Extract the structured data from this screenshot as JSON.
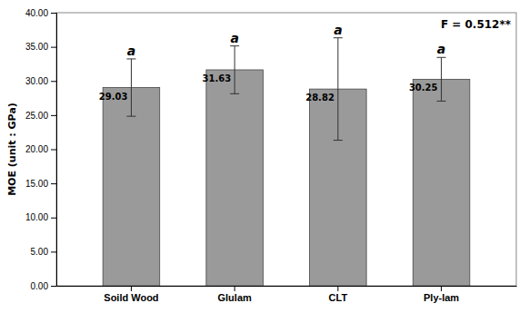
{
  "chart_data": {
    "type": "bar",
    "categories": [
      "Soild Wood",
      "Glulam",
      "CLT",
      "Ply-lam"
    ],
    "values": [
      29.03,
      31.63,
      28.82,
      30.25
    ],
    "errors": [
      4.2,
      3.5,
      7.5,
      3.2
    ],
    "superscripts": [
      "a",
      "a",
      "a",
      "a"
    ],
    "annotation": "F = 0.512**",
    "color": "#9a9a9a",
    "ylabel": "MOE (unit : GPa)",
    "ylim": [
      0,
      40
    ],
    "yticks": [
      {
        "value": 0,
        "label": "0.00"
      },
      {
        "value": 5,
        "label": "5.00"
      },
      {
        "value": 10,
        "label": "10.00"
      },
      {
        "value": 15,
        "label": "15.00"
      },
      {
        "value": 20,
        "label": "20.00"
      },
      {
        "value": 25,
        "label": "25.00"
      },
      {
        "value": 30,
        "label": "30.00"
      },
      {
        "value": 35,
        "label": "35.00"
      },
      {
        "value": 40,
        "label": "40.00"
      }
    ],
    "grid": false,
    "data_labels": true
  }
}
